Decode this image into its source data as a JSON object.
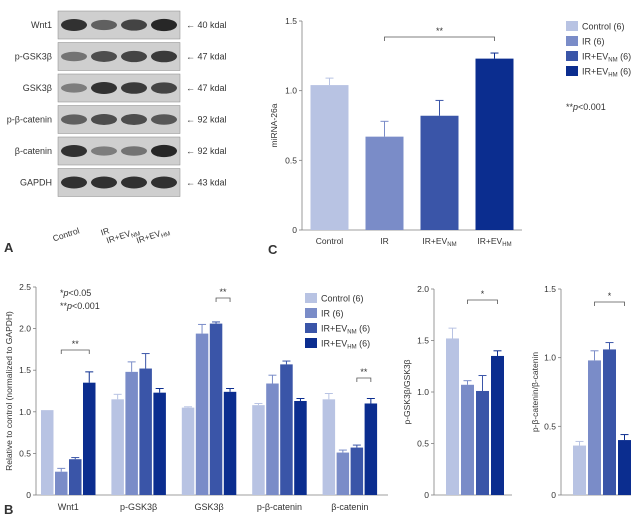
{
  "colors": {
    "control": "#b8c3e3",
    "ir": "#7a8cc8",
    "ir_evnm": "#3a55a8",
    "ir_evhm": "#0b2d8f",
    "axis": "#7f7f7f"
  },
  "panel_letters": {
    "a": "A",
    "b": "B",
    "c": "C"
  },
  "legend": {
    "entries": [
      {
        "base": "Control (6)",
        "sub": "",
        "post": ""
      },
      {
        "base": "IR (6)",
        "sub": "",
        "post": ""
      },
      {
        "base": "IR+EV",
        "sub": "NM",
        "post": " (6)"
      },
      {
        "base": "IR+EV",
        "sub": "HM",
        "post": " (6)"
      }
    ]
  },
  "panel_a": {
    "rows": [
      {
        "label": "Wnt1",
        "marker": "← 40 kdal",
        "intensity": [
          0.85,
          0.6,
          0.75,
          0.9
        ]
      },
      {
        "label": "p-GSK3β",
        "marker": "← 47 kdal",
        "intensity": [
          0.5,
          0.7,
          0.75,
          0.8
        ]
      },
      {
        "label": "GSK3β",
        "marker": "← 47 kdal",
        "intensity": [
          0.45,
          0.85,
          0.8,
          0.75
        ]
      },
      {
        "label": "p-β-catenin",
        "marker": "← 92 kdal",
        "intensity": [
          0.6,
          0.7,
          0.7,
          0.65
        ]
      },
      {
        "label": "β-catenin",
        "marker": "← 92 kdal",
        "intensity": [
          0.85,
          0.45,
          0.5,
          0.9
        ]
      },
      {
        "label": "GAPDH",
        "marker": "← 43 kdal",
        "intensity": [
          0.85,
          0.85,
          0.85,
          0.85
        ]
      }
    ],
    "lanes": [
      {
        "base": "Control",
        "sub": ""
      },
      {
        "base": "IR",
        "sub": ""
      },
      {
        "base": "IR+EV",
        "sub": "NM"
      },
      {
        "base": "IR+EV",
        "sub": "HM"
      }
    ]
  },
  "chart_data": [
    {
      "id": "C",
      "type": "bar",
      "categories": [
        {
          "base": "Control",
          "sub": ""
        },
        {
          "base": "IR",
          "sub": ""
        },
        {
          "base": "IR+EV",
          "sub": "NM"
        },
        {
          "base": "IR+EV",
          "sub": "HM"
        }
      ],
      "values": [
        1.04,
        0.67,
        0.82,
        1.23
      ],
      "errors": [
        0.05,
        0.11,
        0.11,
        0.04
      ],
      "ylabel": "miRNA-26a",
      "ylim": [
        0,
        1.5
      ],
      "yticks": [
        0,
        0.5,
        1.0,
        1.5
      ],
      "ytick_labels": [
        "0",
        "0.5",
        "1.0",
        "1.5"
      ],
      "significance": [
        {
          "from": 1,
          "to": 3,
          "label": "**"
        }
      ],
      "annotations": [
        {
          "label": "**",
          "italic": "p",
          "text": "<0.001"
        }
      ]
    },
    {
      "id": "B-main",
      "type": "bar",
      "categories": [
        "Wnt1",
        "p-GSK3β",
        "GSK3β",
        "p-β-catenin",
        "β-catenin"
      ],
      "series": [
        {
          "name": "Control (6)",
          "values": [
            1.02,
            1.15,
            1.05,
            1.08,
            1.15
          ],
          "errors": [
            0,
            0.06,
            0.01,
            0.02,
            0.07
          ]
        },
        {
          "name": "IR (6)",
          "values": [
            0.28,
            1.48,
            1.94,
            1.34,
            0.51
          ],
          "errors": [
            0.04,
            0.12,
            0.11,
            0.1,
            0.03
          ]
        },
        {
          "name": "IR+EVNM (6)",
          "values": [
            0.43,
            1.52,
            2.06,
            1.57,
            0.57
          ],
          "errors": [
            0.02,
            0.18,
            0.02,
            0.04,
            0.03
          ]
        },
        {
          "name": "IR+EVHM (6)",
          "values": [
            1.35,
            1.23,
            1.24,
            1.13,
            1.1
          ],
          "errors": [
            0.13,
            0.05,
            0.04,
            0.03,
            0.06
          ]
        }
      ],
      "ylabel": "Relative to control (normalized to GAPDH)",
      "ylim": [
        0,
        2.5
      ],
      "yticks": [
        0,
        0.5,
        1.0,
        1.5,
        2.0,
        2.5
      ],
      "ytick_labels": [
        "0",
        "0.5",
        "1.0",
        "1.5",
        "2.0",
        "2.5"
      ],
      "significance": [
        {
          "category": 0,
          "from": 1,
          "to": 3,
          "label": "**"
        },
        {
          "category": 2,
          "from": 2,
          "to": 3,
          "label": "**"
        },
        {
          "category": 4,
          "from": 2,
          "to": 3,
          "label": "**"
        }
      ],
      "annotations": [
        {
          "label": "*",
          "italic": "p",
          "text": "<0.05"
        },
        {
          "label": "**",
          "italic": "p",
          "text": "<0.001"
        }
      ]
    },
    {
      "id": "B-ratio-gsk",
      "type": "bar",
      "categories": [
        "Control (6)",
        "IR (6)",
        "IR+EVNM (6)",
        "IR+EVHM (6)"
      ],
      "values": [
        1.52,
        1.07,
        1.01,
        1.35
      ],
      "errors": [
        0.1,
        0.04,
        0.15,
        0.05
      ],
      "ylabel": "p-GSK3β/GSK3β",
      "ylim": [
        0,
        2.0
      ],
      "yticks": [
        0,
        0.5,
        1.0,
        1.5,
        2.0
      ],
      "ytick_labels": [
        "0",
        "0.5",
        "1.0",
        "1.5",
        "2.0"
      ],
      "significance": [
        {
          "from": 1,
          "to": 3,
          "label": "*"
        }
      ]
    },
    {
      "id": "B-ratio-catenin",
      "type": "bar",
      "categories": [
        "Control (6)",
        "IR (6)",
        "IR+EVNM (6)",
        "IR+EVHM (6)"
      ],
      "values": [
        0.36,
        0.98,
        1.06,
        0.4
      ],
      "errors": [
        0.03,
        0.07,
        0.05,
        0.04
      ],
      "ylabel": "p-β-catenin/β-catenin",
      "ylim": [
        0,
        1.5
      ],
      "yticks": [
        0,
        0.5,
        1.0,
        1.5
      ],
      "ytick_labels": [
        "0",
        "0.5",
        "1.0",
        "1.5"
      ],
      "significance": [
        {
          "from": 1,
          "to": 3,
          "label": "*"
        }
      ]
    }
  ]
}
